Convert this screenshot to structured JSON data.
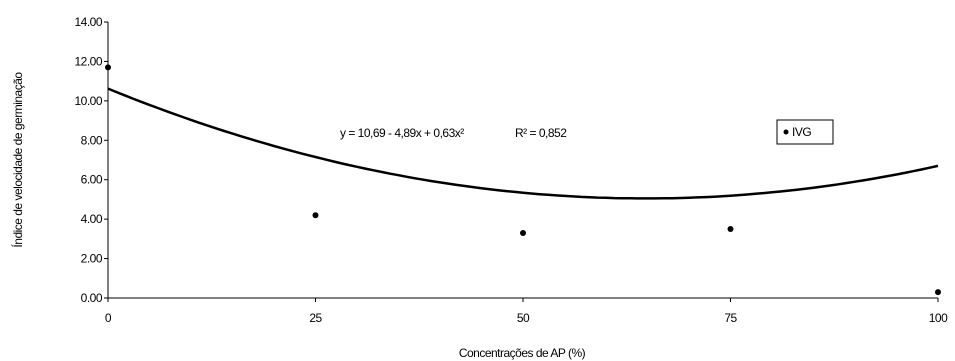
{
  "chart_data": {
    "type": "scatter",
    "xlabel": "Concentrações de AP (%)",
    "ylabel": "Índice de velocidade de germinação",
    "xlim": [
      0,
      100
    ],
    "ylim": [
      0,
      14
    ],
    "x_ticks": [
      "0",
      "25",
      "50",
      "75",
      "100"
    ],
    "y_ticks": [
      "0.00",
      "2.00",
      "4.00",
      "6.00",
      "8.00",
      "10.00",
      "12.00",
      "14.00"
    ],
    "grid": false,
    "legend_position": "top-right",
    "legend_label": "IVG",
    "series": [
      {
        "name": "IVG",
        "x": [
          0,
          25,
          50,
          75,
          100
        ],
        "y": [
          11.7,
          4.2,
          3.3,
          3.5,
          0.3
        ]
      }
    ],
    "trendline": {
      "type": "polynomial",
      "equation_text": "y = 10,69 - 4,89x + 0,63x²",
      "r2_text": "R² = 0,852"
    }
  }
}
